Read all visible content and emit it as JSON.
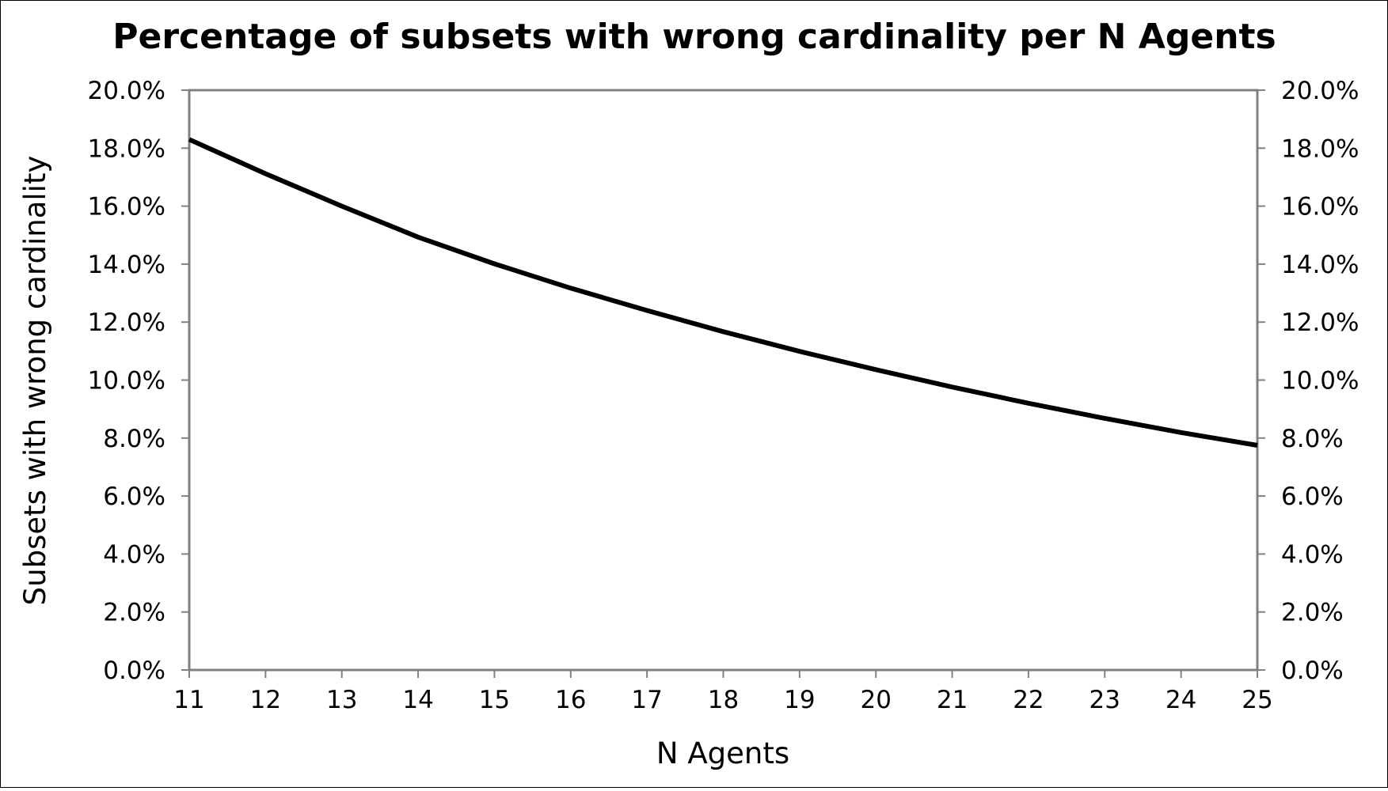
{
  "chart_data": {
    "type": "line",
    "title": "Percentage of subsets with wrong cardinality per N Agents",
    "xlabel": "N Agents",
    "ylabel": "Subsets with wrong cardinality",
    "x": [
      11,
      12,
      13,
      14,
      15,
      16,
      17,
      18,
      19,
      20,
      21,
      22,
      23,
      24,
      25
    ],
    "series": [
      {
        "values": [
          0.183,
          0.1712,
          0.16,
          0.1493,
          0.1401,
          0.1317,
          0.124,
          0.1167,
          0.1099,
          0.1036,
          0.0976,
          0.092,
          0.0868,
          0.0819,
          0.0775
        ]
      }
    ],
    "xlim": [
      11,
      25
    ],
    "ylim": [
      0,
      0.2
    ],
    "y_ticks": [
      "0.0%",
      "2.0%",
      "4.0%",
      "6.0%",
      "8.0%",
      "10.0%",
      "12.0%",
      "14.0%",
      "16.0%",
      "18.0%",
      "20.0%"
    ],
    "y_ticks_right": [
      "0.0%",
      "2.0%",
      "4.0%",
      "6.0%",
      "8.0%",
      "10.0%",
      "12.0%",
      "14.0%",
      "16.0%",
      "18.0%",
      "20.0%"
    ],
    "x_ticks": [
      "11",
      "12",
      "13",
      "14",
      "15",
      "16",
      "17",
      "18",
      "19",
      "20",
      "21",
      "22",
      "23",
      "24",
      "25"
    ],
    "grid": false,
    "line_color": "#000000",
    "frame_color": "#808080"
  }
}
